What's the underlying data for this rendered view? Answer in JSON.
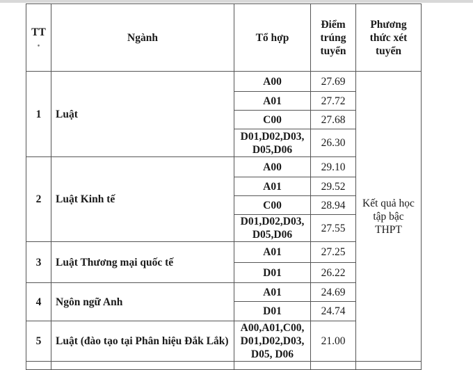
{
  "headers": {
    "tt": "TT",
    "nganh": "Ngành",
    "to_hop": "Tổ hợp",
    "diem": "Điểm trúng tuyển",
    "phuong_thuc": "Phương thức xét tuyển"
  },
  "method": "Kết quả học tập bậc THPT",
  "rows": [
    {
      "tt": "1",
      "nganh": "Luật",
      "items": [
        {
          "c": "A00",
          "s": "27.69"
        },
        {
          "c": "A01",
          "s": "27.72"
        },
        {
          "c": "C00",
          "s": "27.68"
        },
        {
          "c": "D01,D02,D03, D05,D06",
          "s": "26.30"
        }
      ]
    },
    {
      "tt": "2",
      "nganh": "Luật Kinh tế",
      "items": [
        {
          "c": "A00",
          "s": "29.10"
        },
        {
          "c": "A01",
          "s": "29.52"
        },
        {
          "c": "C00",
          "s": "28.94"
        },
        {
          "c": "D01,D02,D03, D05,D06",
          "s": "27.55"
        }
      ]
    },
    {
      "tt": "3",
      "nganh": "Luật Thương mại quốc tế",
      "items": [
        {
          "c": "A01",
          "s": "27.25"
        },
        {
          "c": "D01",
          "s": "26.22"
        }
      ]
    },
    {
      "tt": "4",
      "nganh": "Ngôn ngữ Anh",
      "items": [
        {
          "c": "A01",
          "s": "24.69"
        },
        {
          "c": "D01",
          "s": "24.74"
        }
      ]
    },
    {
      "tt": "5",
      "nganh": "Luật (đào tạo tại Phân hiệu Đắk Lắk)",
      "items": [
        {
          "c": "A00,A01,C00, D01,D02,D03, D05, D06",
          "s": "21.00"
        }
      ]
    }
  ]
}
